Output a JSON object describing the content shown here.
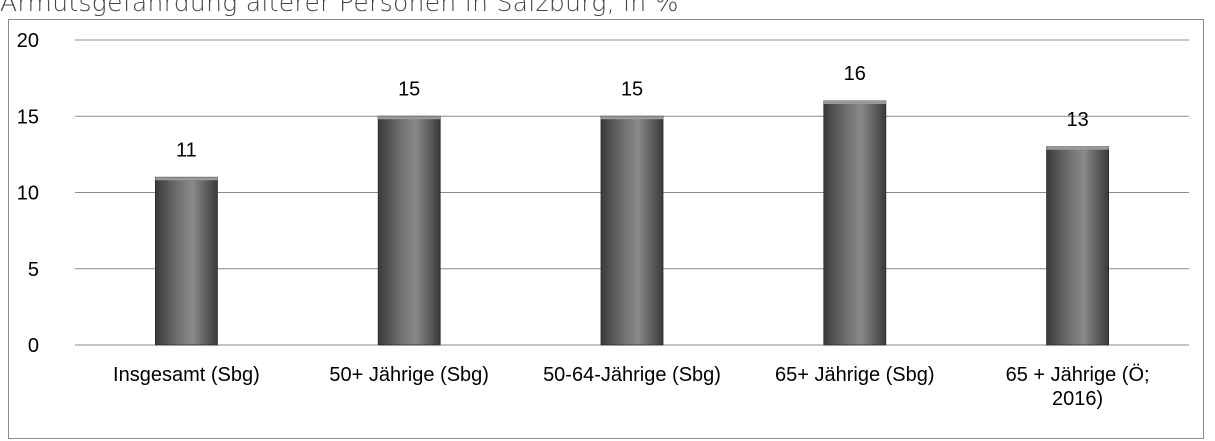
{
  "title": "Armutsgefährdung älterer Personen in Salzburg, in %",
  "chart_data": {
    "type": "bar",
    "title": "Armutsgefährdung älterer Personen in Salzburg, in %",
    "xlabel": "",
    "ylabel": "",
    "categories": [
      [
        "Insgesamt (Sbg)"
      ],
      [
        "50+ Jährige (Sbg)"
      ],
      [
        "50-64-Jährige (Sbg)"
      ],
      [
        "65+ Jährige (Sbg)"
      ],
      [
        "65 + Jährige (Ö;",
        "2016)"
      ]
    ],
    "values": [
      11,
      15,
      15,
      16,
      13
    ],
    "data_labels": [
      "11",
      "15",
      "15",
      "16",
      "13"
    ],
    "ylim": [
      0,
      20
    ],
    "yticks": [
      0,
      5,
      10,
      15,
      20
    ],
    "grid": true,
    "legend": "none",
    "colors": {
      "bar_dark": "#3a3a3a",
      "bar_mid": "#6e6e6e",
      "bar_light": "#8a8a8a",
      "bar_top": "#9a9a9a",
      "gridline": "#8c8c8c",
      "axis": "#8c8c8c"
    }
  }
}
